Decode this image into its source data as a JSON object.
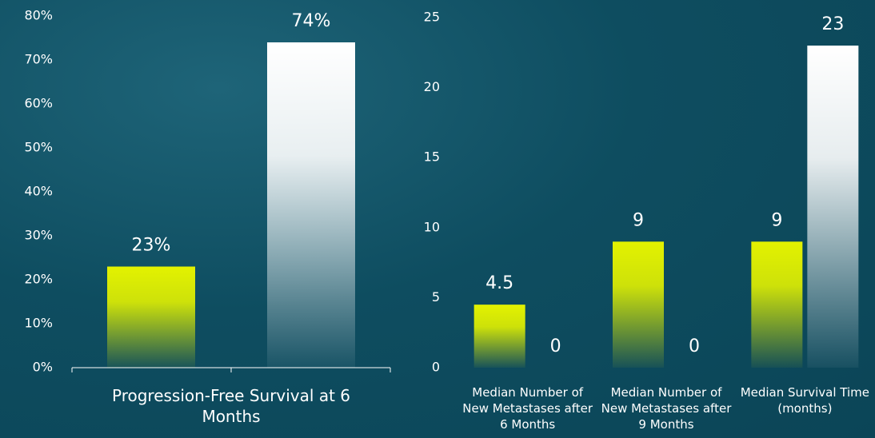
{
  "chart_data": [
    {
      "type": "bar",
      "categories": [
        "Progression-Free Survival at 6 Months"
      ],
      "series": [
        {
          "color": "#e3f200",
          "values": [
            23
          ],
          "value_labels": [
            "23%"
          ]
        },
        {
          "color": "#ffffff",
          "values": [
            74
          ],
          "value_labels": [
            "74%"
          ]
        }
      ],
      "ylim": [
        0,
        80
      ],
      "yticks": [
        {
          "value": 0,
          "label": "0%"
        },
        {
          "value": 10,
          "label": "10%"
        },
        {
          "value": 20,
          "label": "20%"
        },
        {
          "value": 30,
          "label": "30%"
        },
        {
          "value": 40,
          "label": "40%"
        },
        {
          "value": 50,
          "label": "50%"
        },
        {
          "value": 60,
          "label": "60%"
        },
        {
          "value": 70,
          "label": "70%"
        },
        {
          "value": 80,
          "label": "80%"
        }
      ]
    },
    {
      "type": "bar",
      "categories": [
        "Median Number of New Metastases after 6 Months",
        "Median Number of New Metastases after 9 Months",
        "Median Survival Time (months)"
      ],
      "series": [
        {
          "color": "#e3f200",
          "values": [
            4.5,
            9,
            9
          ]
        },
        {
          "color": "#ffffff",
          "values": [
            0,
            0,
            23
          ]
        }
      ],
      "ylim": [
        0,
        25
      ],
      "yticks": [
        0,
        5,
        10,
        15,
        20,
        25
      ]
    }
  ]
}
